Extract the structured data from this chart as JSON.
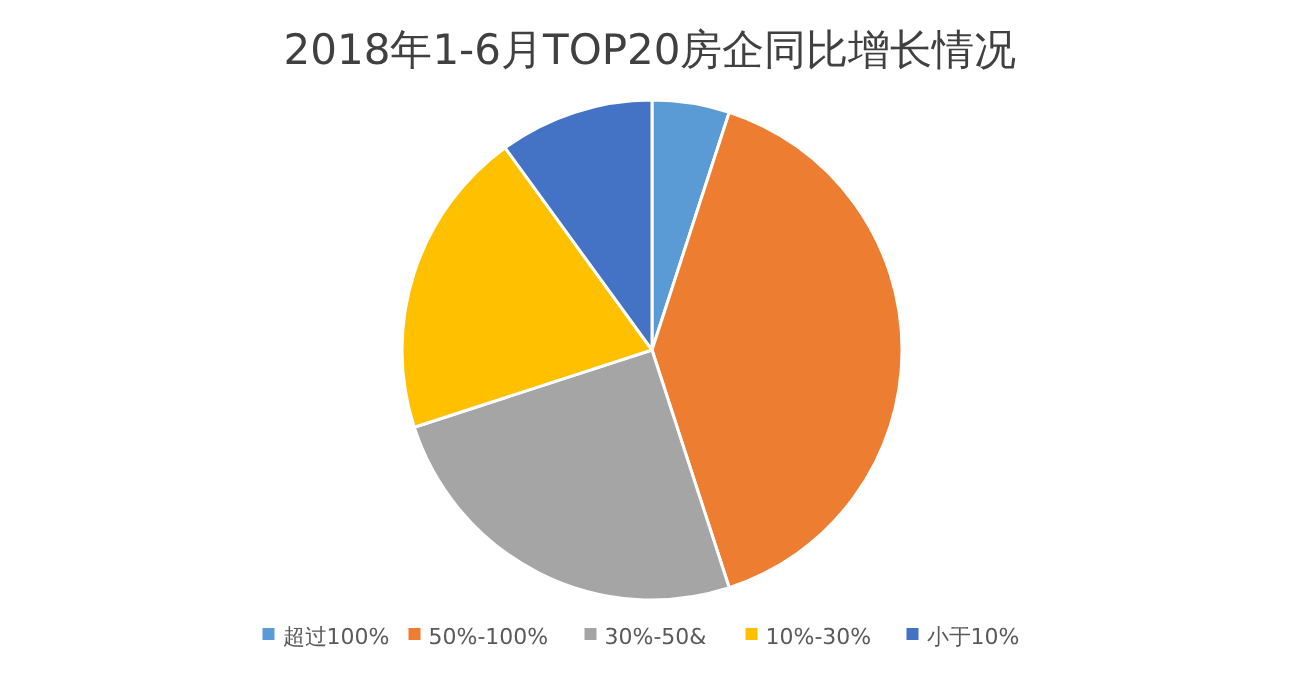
{
  "chart_data": {
    "type": "pie",
    "title": "2018年1-6月TOP20房企同比增长情况",
    "categories": [
      "超过100%",
      "50%-100%",
      "30%-50&",
      "10%-30%",
      "小于10%"
    ],
    "values": [
      5,
      40,
      25,
      20,
      10
    ],
    "colors": [
      "#5b9bd5",
      "#ed7d31",
      "#a5a5a5",
      "#ffc000",
      "#4472c4"
    ],
    "legend": "bottom"
  }
}
